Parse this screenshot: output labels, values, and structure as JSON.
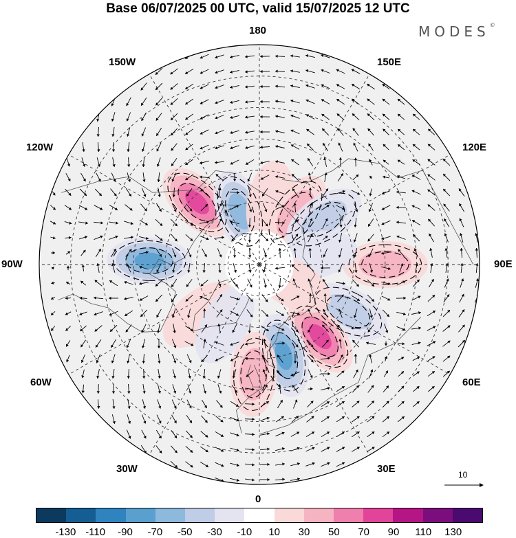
{
  "title": "Base 06/07/2025 00 UTC, valid 15/07/2025 12 UTC",
  "brand": "MODES",
  "brand_mark": "©",
  "longitude_labels": {
    "lon_180": "180",
    "lon_150e": "150E",
    "lon_120e": "120E",
    "lon_90e": "90E",
    "lon_60e": "60E",
    "lon_30e": "30E",
    "lon_0": "0",
    "lon_30w": "30W",
    "lon_60w": "60W",
    "lon_90w": "90W",
    "lon_120w": "120W",
    "lon_150w": "150W"
  },
  "reference_vector": {
    "label": "10"
  },
  "colorbar": {
    "colors": [
      "#0b3a5e",
      "#145e93",
      "#2f83bf",
      "#5aa0cf",
      "#8db9dd",
      "#bfcde6",
      "#e4e4f1",
      "#ffffff",
      "#fad9d9",
      "#f6b3c2",
      "#ef7fac",
      "#e2449a",
      "#b51585",
      "#7c0d7c",
      "#4a0a70"
    ],
    "ticks": [
      "-130",
      "-110",
      "-90",
      "-70",
      "-50",
      "-30",
      "-10",
      "10",
      "30",
      "50",
      "70",
      "90",
      "110",
      "130"
    ]
  },
  "anomalies": [
    {
      "lat": 62,
      "lon": -135,
      "value": 95
    },
    {
      "lat": 72,
      "lon": -160,
      "value": -70
    },
    {
      "lat": 55,
      "lon": -92,
      "value": -85
    },
    {
      "lat": 70,
      "lon": 170,
      "value": 35
    },
    {
      "lat": 70,
      "lon": 145,
      "value": 45
    },
    {
      "lat": 65,
      "lon": 125,
      "value": -40
    },
    {
      "lat": 50,
      "lon": 90,
      "value": 45
    },
    {
      "lat": 58,
      "lon": 62,
      "value": -40
    },
    {
      "lat": 60,
      "lon": 40,
      "value": 85
    },
    {
      "lat": 60,
      "lon": 15,
      "value": -90
    },
    {
      "lat": 55,
      "lon": -3,
      "value": 45
    },
    {
      "lat": 65,
      "lon": -50,
      "value": 30
    },
    {
      "lat": 68,
      "lon": -30,
      "value": -20
    },
    {
      "lat": 72,
      "lon": 100,
      "value": -20
    },
    {
      "lat": 78,
      "lon": 60,
      "value": 25
    }
  ]
}
